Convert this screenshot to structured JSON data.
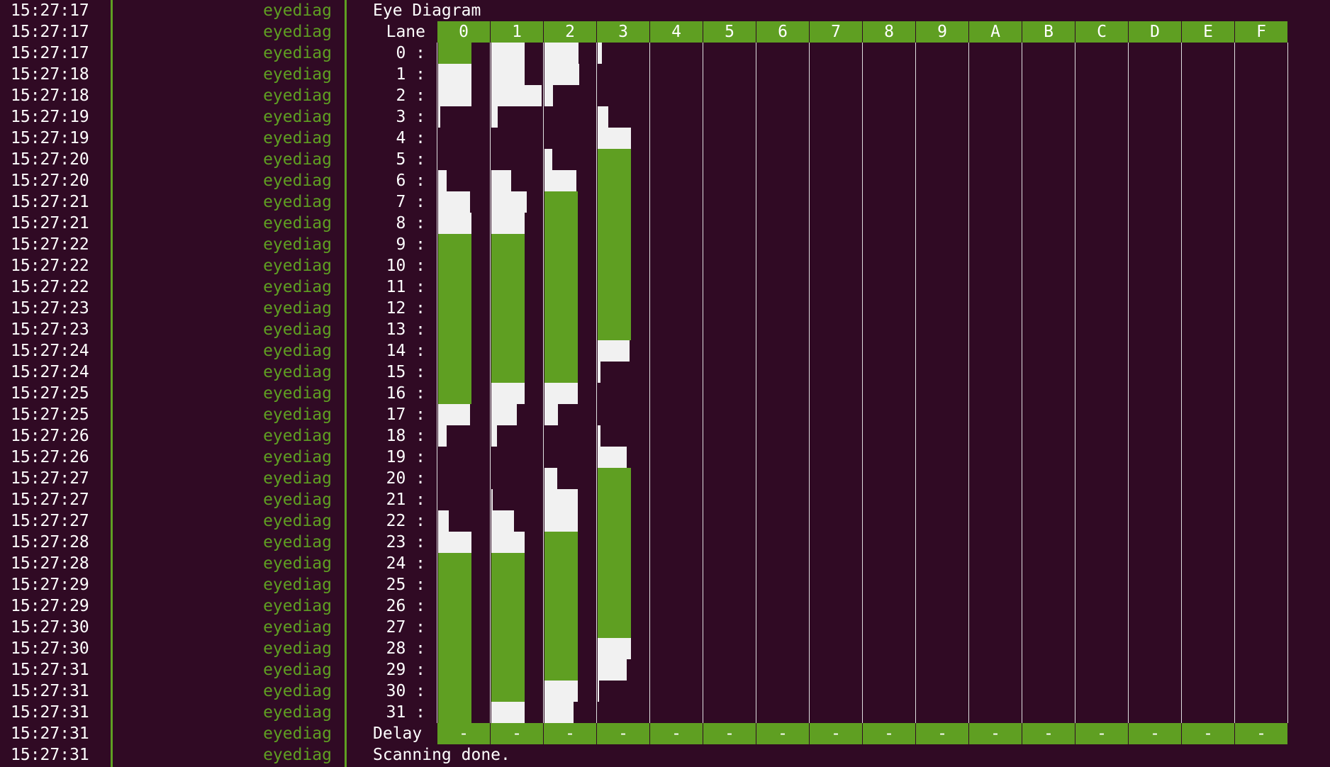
{
  "log": {
    "tag": "eyediag",
    "timestamps": [
      "15:27:17",
      "15:27:17",
      "15:27:17",
      "15:27:18",
      "15:27:18",
      "15:27:19",
      "15:27:19",
      "15:27:20",
      "15:27:20",
      "15:27:21",
      "15:27:21",
      "15:27:22",
      "15:27:22",
      "15:27:22",
      "15:27:23",
      "15:27:23",
      "15:27:24",
      "15:27:24",
      "15:27:25",
      "15:27:25",
      "15:27:26",
      "15:27:26",
      "15:27:27",
      "15:27:27",
      "15:27:27",
      "15:27:28",
      "15:27:28",
      "15:27:29",
      "15:27:29",
      "15:27:30",
      "15:27:30",
      "15:27:31",
      "15:27:31",
      "15:27:31",
      "15:27:31",
      "15:27:31"
    ]
  },
  "diagram": {
    "title": "Eye Diagram",
    "lane_header": "Lane",
    "columns": [
      "0",
      "1",
      "2",
      "3",
      "4",
      "5",
      "6",
      "7",
      "8",
      "9",
      "A",
      "B",
      "C",
      "D",
      "E",
      "F"
    ],
    "lanes": [
      "0 :",
      "1 :",
      "2 :",
      "3 :",
      "4 :",
      "5 :",
      "6 :",
      "7 :",
      "8 :",
      "9 :",
      "10 :",
      "11 :",
      "12 :",
      "13 :",
      "14 :",
      "15 :",
      "16 :",
      "17 :",
      "18 :",
      "19 :",
      "20 :",
      "21 :",
      "22 :",
      "23 :",
      "24 :",
      "25 :",
      "26 :",
      "27 :",
      "28 :",
      "29 :",
      "30 :",
      "31 :"
    ],
    "delay_label": "Delay",
    "delay_values": [
      "-",
      "-",
      "-",
      "-",
      "-",
      "-",
      "-",
      "-",
      "-",
      "-",
      "-",
      "-",
      "-",
      "-",
      "-",
      "-"
    ],
    "status": "Scanning done.",
    "colors": {
      "pass": "#5f9f22",
      "marginal": "#f1f1f1",
      "background": "#300a24"
    }
  }
}
